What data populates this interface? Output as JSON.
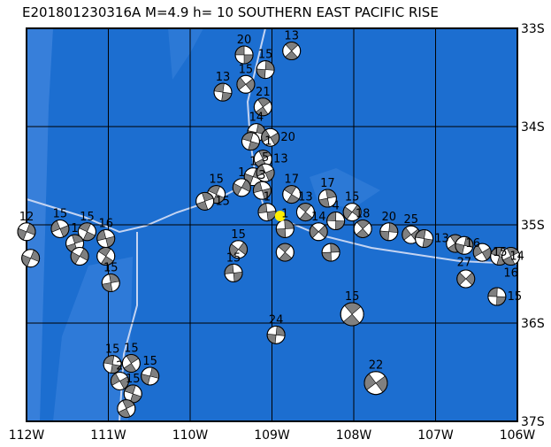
{
  "title": "E201801230316A  M=4.9  h=  10  SOUTHERN  EAST  PACIFIC  RISE",
  "map": {
    "lon_range": [
      -112,
      -106
    ],
    "lat_range": [
      -37,
      -33
    ],
    "x_ticks": [
      "112W",
      "111W",
      "110W",
      "109W",
      "108W",
      "107W",
      "106W"
    ],
    "y_ticks": [
      "33S",
      "34S",
      "35S",
      "36S",
      "37S"
    ],
    "colors": {
      "ocean": "#1c6ed0",
      "shallow": "#3b82dc",
      "boundary": "#c4d4f2",
      "grid": "#000000",
      "epicenter": "#ffee00",
      "mechanism_fill": "#808080"
    },
    "epicenter": {
      "lon": -108.9,
      "lat": -34.91
    },
    "mechanisms": [
      {
        "lon": -109.34,
        "lat": -33.27,
        "depth": "20"
      },
      {
        "lon": -108.76,
        "lat": -33.23,
        "depth": "13"
      },
      {
        "lon": -109.08,
        "lat": -33.42,
        "depth": "15"
      },
      {
        "lon": -109.32,
        "lat": -33.57,
        "depth": "15"
      },
      {
        "lon": -109.6,
        "lat": -33.65,
        "depth": "13"
      },
      {
        "lon": -109.11,
        "lat": -33.8,
        "depth": "21"
      },
      {
        "lon": -109.19,
        "lat": -34.06,
        "depth": "14"
      },
      {
        "lon": -109.02,
        "lat": -34.11,
        "depth": "20"
      },
      {
        "lon": -109.26,
        "lat": -34.15,
        "depth": "1"
      },
      {
        "lon": -109.11,
        "lat": -34.33,
        "depth": "13"
      },
      {
        "lon": -109.23,
        "lat": -34.51,
        "depth": "1"
      },
      {
        "lon": -109.08,
        "lat": -34.47,
        "depth": "5"
      },
      {
        "lon": -109.68,
        "lat": -34.69,
        "depth": "15"
      },
      {
        "lon": -109.82,
        "lat": -34.76,
        "depth": "15"
      },
      {
        "lon": -109.37,
        "lat": -34.62,
        "depth": "1"
      },
      {
        "lon": -109.12,
        "lat": -34.65,
        "depth": "3"
      },
      {
        "lon": -108.76,
        "lat": -34.69,
        "depth": "17"
      },
      {
        "lon": -108.32,
        "lat": -34.73,
        "depth": "17"
      },
      {
        "lon": -108.02,
        "lat": -34.87,
        "depth": "15"
      },
      {
        "lon": -109.06,
        "lat": -34.87,
        "depth": "1"
      },
      {
        "lon": -108.59,
        "lat": -34.87,
        "depth": "13"
      },
      {
        "lon": -108.84,
        "lat": -35.04,
        "depth": "1"
      },
      {
        "lon": -108.43,
        "lat": -35.07,
        "depth": "14"
      },
      {
        "lon": -108.22,
        "lat": -34.96,
        "depth": "4"
      },
      {
        "lon": -107.89,
        "lat": -35.04,
        "depth": "18"
      },
      {
        "lon": -107.57,
        "lat": -35.07,
        "depth": "20"
      },
      {
        "lon": -107.3,
        "lat": -35.1,
        "depth": "25"
      },
      {
        "lon": -107.14,
        "lat": -35.14,
        "depth": "13"
      },
      {
        "lon": -106.76,
        "lat": -35.19,
        "depth": "16"
      },
      {
        "lon": -106.65,
        "lat": -35.21,
        "depth": "27"
      },
      {
        "lon": -106.43,
        "lat": -35.28,
        "depth": "15"
      },
      {
        "lon": -106.22,
        "lat": -35.32,
        "depth": "14"
      },
      {
        "lon": -106.08,
        "lat": -35.32,
        "depth": "16"
      },
      {
        "lon": -112.0,
        "lat": -35.07,
        "depth": "12"
      },
      {
        "lon": -111.59,
        "lat": -35.04,
        "depth": "15"
      },
      {
        "lon": -111.26,
        "lat": -35.07,
        "depth": "15"
      },
      {
        "lon": -111.41,
        "lat": -35.19,
        "depth": "1"
      },
      {
        "lon": -111.35,
        "lat": -35.32,
        "depth": ""
      },
      {
        "lon": -111.03,
        "lat": -35.14,
        "depth": "16"
      },
      {
        "lon": -111.03,
        "lat": -35.32,
        "depth": ""
      },
      {
        "lon": -110.97,
        "lat": -35.59,
        "depth": "15"
      },
      {
        "lon": -109.41,
        "lat": -35.25,
        "depth": "15"
      },
      {
        "lon": -109.47,
        "lat": -35.49,
        "depth": "15"
      },
      {
        "lon": -108.84,
        "lat": -35.28,
        "depth": ""
      },
      {
        "lon": -108.28,
        "lat": -35.28,
        "depth": ""
      },
      {
        "lon": -106.63,
        "lat": -35.55,
        "depth": ""
      },
      {
        "lon": -106.25,
        "lat": -35.73,
        "depth": "15"
      },
      {
        "lon": -108.02,
        "lat": -35.91,
        "depth": "15",
        "big": true
      },
      {
        "lon": -108.95,
        "lat": -36.12,
        "depth": "24"
      },
      {
        "lon": -107.73,
        "lat": -36.61,
        "depth": "22",
        "big": true
      },
      {
        "lon": -110.95,
        "lat": -36.42,
        "depth": "15"
      },
      {
        "lon": -110.72,
        "lat": -36.41,
        "depth": "15"
      },
      {
        "lon": -110.49,
        "lat": -36.54,
        "depth": "15"
      },
      {
        "lon": -110.86,
        "lat": -36.59,
        "depth": "2"
      },
      {
        "lon": -110.7,
        "lat": -36.72,
        "depth": "15"
      },
      {
        "lon": -110.78,
        "lat": -36.87,
        "depth": ""
      },
      {
        "lon": -111.95,
        "lat": -35.34,
        "depth": ""
      }
    ]
  }
}
